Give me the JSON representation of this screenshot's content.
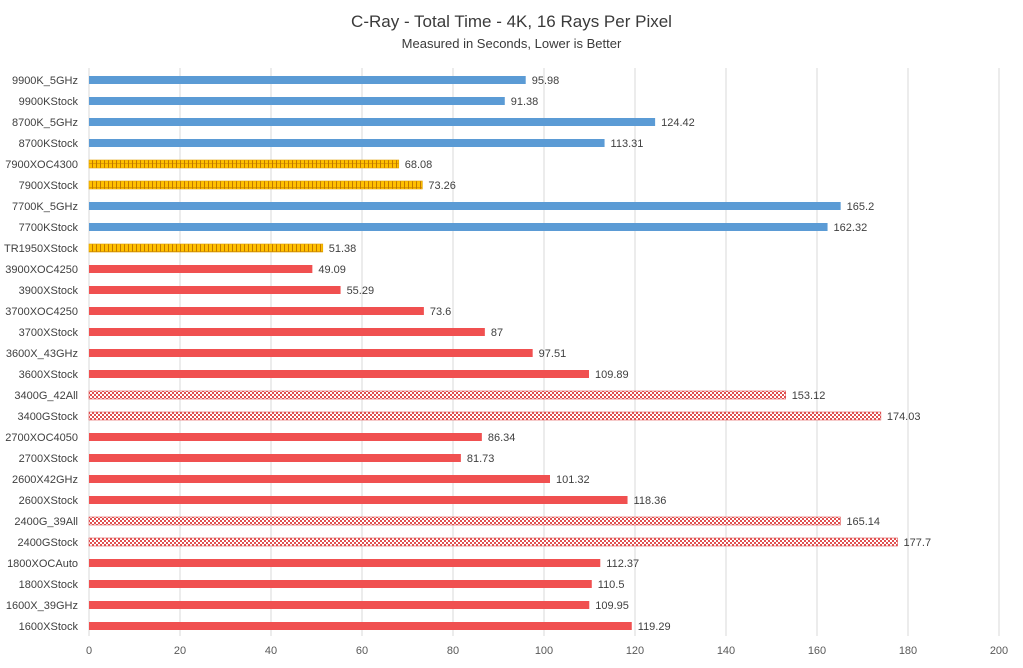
{
  "chart_data": {
    "type": "bar",
    "orientation": "horizontal",
    "title": "C-Ray - Total Time - 4K, 16 Rays Per Pixel",
    "subtitle": "Measured in Seconds, Lower is Better",
    "xlim": [
      0,
      200
    ],
    "xticks": [
      0,
      20,
      40,
      60,
      80,
      100,
      120,
      140,
      160,
      180,
      200
    ],
    "grid": "vertical",
    "legend": "none",
    "colors": {
      "intel": "#5b9bd5",
      "hedt": "#ffc000",
      "amd": "#f05050",
      "apu": "#f05050"
    },
    "categories": [
      "9900K_5GHz",
      "9900KStock",
      "8700K_5GHz",
      "8700KStock",
      "7900XOC4300",
      "7900XStock",
      "7700K_5GHz",
      "7700KStock",
      "TR1950XStock",
      "3900XOC4250",
      "3900XStock",
      "3700XOC4250",
      "3700XStock",
      "3600X_43GHz",
      "3600XStock",
      "3400G_42All",
      "3400GStock",
      "2700XOC4050",
      "2700XStock",
      "2600X42GHz",
      "2600XStock",
      "2400G_39All",
      "2400GStock",
      "1800XOCAuto",
      "1800XStock",
      "1600X_39GHz",
      "1600XStock"
    ],
    "values": [
      95.98,
      91.38,
      124.42,
      113.31,
      68.08,
      73.26,
      165.2,
      162.32,
      51.38,
      49.09,
      55.29,
      73.6,
      87,
      97.51,
      109.89,
      153.12,
      174.03,
      86.34,
      81.73,
      101.32,
      118.36,
      165.14,
      177.7,
      112.37,
      110.5,
      109.95,
      119.29
    ],
    "value_labels": [
      "95.98",
      "91.38",
      "124.42",
      "113.31",
      "68.08",
      "73.26",
      "165.2",
      "162.32",
      "51.38",
      "49.09",
      "55.29",
      "73.6",
      "87",
      "97.51",
      "109.89",
      "153.12",
      "174.03",
      "86.34",
      "81.73",
      "101.32",
      "118.36",
      "165.14",
      "177.7",
      "112.37",
      "110.5",
      "109.95",
      "119.29"
    ],
    "groups": [
      "intel",
      "intel",
      "intel",
      "intel",
      "hedt",
      "hedt",
      "intel",
      "intel",
      "hedt",
      "amd",
      "amd",
      "amd",
      "amd",
      "amd",
      "amd",
      "apu",
      "apu",
      "amd",
      "amd",
      "amd",
      "amd",
      "apu",
      "apu",
      "amd",
      "amd",
      "amd",
      "amd"
    ]
  }
}
